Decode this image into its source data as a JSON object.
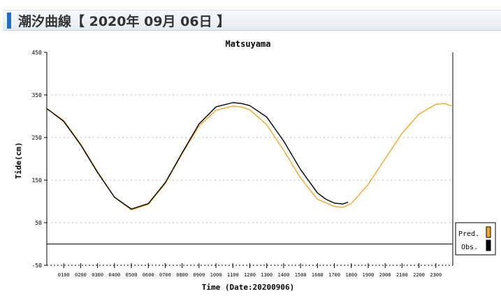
{
  "header": {
    "title": "潮汐曲線【 2020年 09月 06日 】"
  },
  "chart_data": {
    "type": "line",
    "title": "Matsuyama",
    "xlabel": "Time (Date:20200906)",
    "ylabel": "Tide(cm)",
    "xlim": [
      0,
      24
    ],
    "ylim": [
      -50,
      450
    ],
    "yticks": [
      -50,
      50,
      150,
      250,
      350,
      450
    ],
    "xtick_labels": [
      "0100",
      "0200",
      "0300",
      "0400",
      "0500",
      "0600",
      "0700",
      "0800",
      "0900",
      "1000",
      "1100",
      "1200",
      "1300",
      "1400",
      "1500",
      "1600",
      "1700",
      "1800",
      "1900",
      "2000",
      "2100",
      "2200",
      "2300"
    ],
    "grid": true,
    "legend": "right",
    "series": [
      {
        "name": "Pred.",
        "color": "#f5a623",
        "x": [
          0,
          1,
          2,
          3,
          4,
          5,
          6,
          7,
          8,
          9,
          10,
          11,
          11.5,
          12,
          13,
          14,
          15,
          16,
          17,
          17.5,
          18,
          19,
          20,
          21,
          22,
          23,
          23.5,
          24
        ],
        "y": [
          318,
          290,
          235,
          170,
          110,
          80,
          93,
          142,
          212,
          277,
          314,
          324,
          322,
          315,
          280,
          220,
          155,
          105,
          88,
          86,
          95,
          140,
          200,
          260,
          305,
          328,
          330,
          323
        ]
      },
      {
        "name": "Obs.",
        "color": "#000000",
        "x": [
          0,
          1,
          2,
          3,
          4,
          5,
          6,
          7,
          8,
          9,
          10,
          11,
          11.5,
          12,
          13,
          14,
          15,
          16,
          16.5,
          17,
          17.5,
          17.8
        ],
        "y": [
          318,
          288,
          233,
          168,
          110,
          82,
          95,
          144,
          214,
          282,
          322,
          332,
          330,
          325,
          298,
          242,
          175,
          120,
          105,
          96,
          94,
          98
        ]
      }
    ],
    "legend_entries": [
      "Pred.",
      "Obs."
    ]
  }
}
